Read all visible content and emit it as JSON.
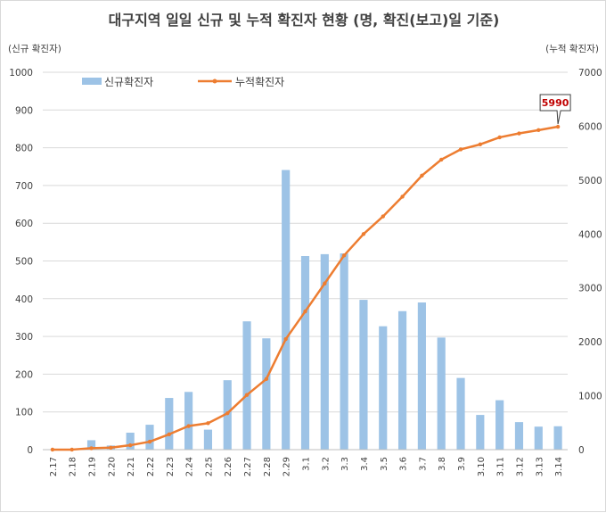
{
  "chart_data": {
    "type": "bar+line",
    "title": "대구지역 일일 신규 및 누적 확진자 현황 (명, 확진(보고)일 기준)",
    "y_left_label": "(신규 확진자)",
    "y_right_label": "(누적 확진자)",
    "categories": [
      "2.17",
      "2.18",
      "2.19",
      "2.20",
      "2.21",
      "2.22",
      "2.23",
      "2.24",
      "2.25",
      "2.26",
      "2.27",
      "2.28",
      "2.29",
      "3.1",
      "3.2",
      "3.3",
      "3.4",
      "3.5",
      "3.6",
      "3.7",
      "3.8",
      "3.9",
      "3.10",
      "3.11",
      "3.12",
      "3.13",
      "3.14"
    ],
    "series": [
      {
        "name": "신규확진자",
        "type": "bar",
        "axis": "left",
        "color": "#9dc3e6",
        "values": [
          1,
          0,
          25,
          11,
          45,
          66,
          137,
          153,
          53,
          184,
          340,
          295,
          741,
          513,
          518,
          520,
          397,
          327,
          367,
          390,
          297,
          190,
          92,
          131,
          73,
          61,
          62
        ]
      },
      {
        "name": "누적확진자",
        "type": "line",
        "axis": "right",
        "color": "#ed7d31",
        "values": [
          1,
          1,
          26,
          37,
          82,
          148,
          285,
          438,
          491,
          675,
          1015,
          1310,
          2051,
          2564,
          3082,
          3602,
          3999,
          4326,
          4693,
          5083,
          5380,
          5570,
          5662,
          5793,
          5866,
          5927,
          5990
        ]
      }
    ],
    "y_left": {
      "min": 0,
      "max": 1000,
      "ticks": [
        0,
        100,
        200,
        300,
        400,
        500,
        600,
        700,
        800,
        900,
        1000
      ]
    },
    "y_right": {
      "min": 0,
      "max": 7000,
      "ticks": [
        0,
        1000,
        2000,
        3000,
        4000,
        5000,
        6000,
        7000
      ]
    },
    "grid": true,
    "legend_position": "top-left",
    "annotation": {
      "label": "5990",
      "target": "3.14"
    }
  }
}
